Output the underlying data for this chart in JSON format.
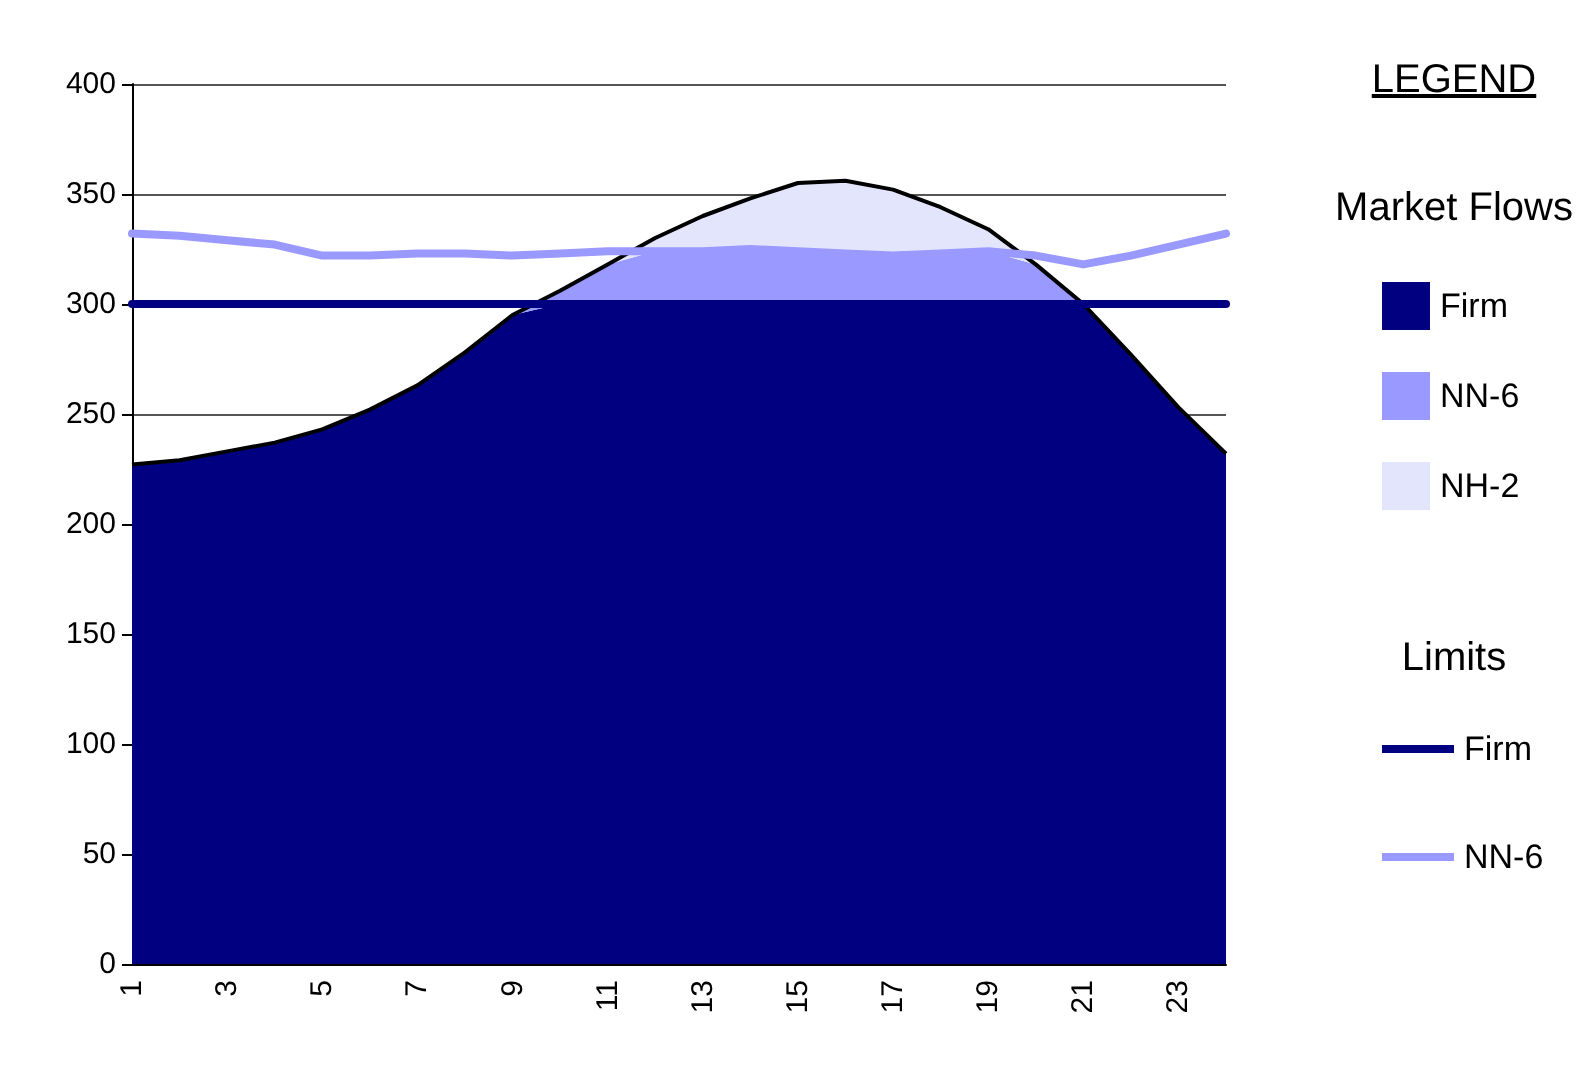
{
  "chart_data": {
    "type": "area",
    "stacked": true,
    "categories": [
      "1",
      null,
      "3",
      null,
      "5",
      null,
      "7",
      null,
      "9",
      null,
      "11",
      null,
      "13",
      null,
      "15",
      null,
      "17",
      null,
      "19",
      null,
      "21",
      null,
      "23",
      null
    ],
    "series": [
      {
        "name": "Firm",
        "color": "#000080",
        "values": [
          227,
          229,
          233,
          237,
          243,
          252,
          263,
          278,
          295,
          300,
          300,
          300,
          300,
          300,
          300,
          300,
          300,
          300,
          300,
          300,
          300,
          277,
          253,
          232
        ]
      },
      {
        "name": "NN-6",
        "color": "#9999ff",
        "values": [
          0,
          0,
          0,
          0,
          0,
          0,
          0,
          0,
          0,
          6,
          18,
          24,
          24,
          25,
          24,
          23,
          22,
          23,
          24,
          18,
          0,
          0,
          0,
          0
        ]
      },
      {
        "name": "NH-2",
        "color": "#e2e5fb",
        "values": [
          0,
          0,
          0,
          0,
          0,
          0,
          0,
          0,
          0,
          0,
          0,
          6,
          16,
          23,
          31,
          33,
          30,
          21,
          10,
          0,
          0,
          0,
          0,
          0
        ]
      },
      {
        "name": "Firm",
        "type": "line",
        "color": "#000080",
        "values": [
          300,
          300,
          300,
          300,
          300,
          300,
          300,
          300,
          300,
          300,
          300,
          300,
          300,
          300,
          300,
          300,
          300,
          300,
          300,
          300,
          300,
          300,
          300,
          300
        ]
      },
      {
        "name": "NN-6",
        "type": "line",
        "color": "#9999ff",
        "values": [
          332,
          331,
          329,
          327,
          322,
          322,
          323,
          323,
          322,
          323,
          324,
          324,
          324,
          325,
          324,
          323,
          322,
          323,
          324,
          322,
          318,
          322,
          327,
          332
        ]
      }
    ],
    "ylim": [
      0,
      400
    ],
    "yticks": [
      0,
      50,
      100,
      150,
      200,
      250,
      300,
      350,
      400
    ],
    "grid": "y",
    "legend": "right",
    "marker": "none",
    "legend_title": "LEGEND",
    "annotations": [
      "Market Flows",
      "Limits"
    ]
  }
}
